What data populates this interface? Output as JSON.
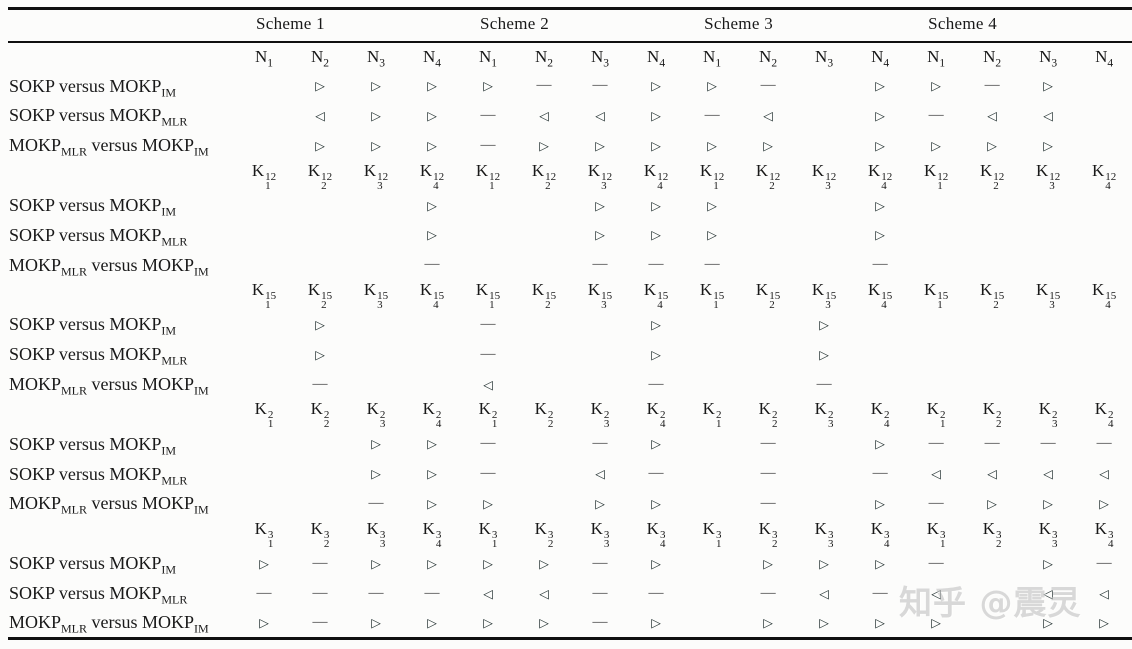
{
  "page": {
    "background": "#fcfcfb"
  },
  "colors": {
    "rule": "#101010",
    "text": "#191919",
    "triangle": "#202e2e",
    "dash": "#3f3f3f",
    "watermark": "#c3c3c3"
  },
  "watermark": {
    "text": "知乎 @震灵"
  },
  "symbols_legend": {
    "better": "▷",
    "worse": "◁",
    "equal": "—"
  },
  "table": {
    "schemes": [
      "Scheme 1",
      "Scheme 2",
      "Scheme 3",
      "Scheme 4"
    ],
    "comparisons": [
      {
        "parts": [
          [
            "t",
            "SOKP versus MOKP"
          ],
          [
            "s",
            "IM"
          ]
        ]
      },
      {
        "parts": [
          [
            "t",
            "SOKP versus MOKP"
          ],
          [
            "s",
            "MLR"
          ]
        ]
      },
      {
        "parts": [
          [
            "t",
            "MOKP"
          ],
          [
            "s",
            "MLR"
          ],
          [
            "t",
            " versus MOKP"
          ],
          [
            "s",
            "IM"
          ]
        ]
      }
    ],
    "blocks": [
      {
        "col_base": "N",
        "col_sup": "",
        "col_subs": [
          "1",
          "2",
          "3",
          "4"
        ],
        "rows": [
          [
            "",
            "▷",
            "▷",
            "▷",
            "▷",
            "—",
            "—",
            "▷",
            "▷",
            "—",
            "",
            "▷",
            "▷",
            "—",
            "▷",
            ""
          ],
          [
            "",
            "◁",
            "▷",
            "▷",
            "—",
            "◁",
            "◁",
            "▷",
            "—",
            "◁",
            "",
            "▷",
            "—",
            "◁",
            "◁",
            ""
          ],
          [
            "",
            "▷",
            "▷",
            "▷",
            "—",
            "▷",
            "▷",
            "▷",
            "▷",
            "▷",
            "",
            "▷",
            "▷",
            "▷",
            "▷",
            ""
          ]
        ]
      },
      {
        "col_base": "K",
        "col_sup": "12",
        "col_subs": [
          "1",
          "2",
          "3",
          "4"
        ],
        "rows": [
          [
            "",
            "",
            "",
            "▷",
            "",
            "",
            "▷",
            "▷",
            "▷",
            "",
            "",
            "▷",
            "",
            "",
            "",
            ""
          ],
          [
            "",
            "",
            "",
            "▷",
            "",
            "",
            "▷",
            "▷",
            "▷",
            "",
            "",
            "▷",
            "",
            "",
            "",
            ""
          ],
          [
            "",
            "",
            "",
            "—",
            "",
            "",
            "—",
            "—",
            "—",
            "",
            "",
            "—",
            "",
            "",
            "",
            ""
          ]
        ]
      },
      {
        "col_base": "K",
        "col_sup": "15",
        "col_subs": [
          "1",
          "2",
          "3",
          "4"
        ],
        "rows": [
          [
            "",
            "▷",
            "",
            "",
            "—",
            "",
            "",
            "▷",
            "",
            "",
            "▷",
            "",
            "",
            "",
            "",
            ""
          ],
          [
            "",
            "▷",
            "",
            "",
            "—",
            "",
            "",
            "▷",
            "",
            "",
            "▷",
            "",
            "",
            "",
            "",
            ""
          ],
          [
            "",
            "—",
            "",
            "",
            "◁",
            "",
            "",
            "—",
            "",
            "",
            "—",
            "",
            "",
            "",
            "",
            ""
          ]
        ]
      },
      {
        "col_base": "K",
        "col_sup": "2",
        "col_subs": [
          "1",
          "2",
          "3",
          "4"
        ],
        "rows": [
          [
            "",
            "",
            "▷",
            "▷",
            "—",
            "",
            "—",
            "▷",
            "",
            "—",
            "",
            "▷",
            "—",
            "—",
            "—",
            "—"
          ],
          [
            "",
            "",
            "▷",
            "▷",
            "—",
            "",
            "◁",
            "—",
            "",
            "—",
            "",
            "—",
            "◁",
            "◁",
            "◁",
            "◁"
          ],
          [
            "",
            "",
            "—",
            "▷",
            "▷",
            "",
            "▷",
            "▷",
            "",
            "—",
            "",
            "▷",
            "—",
            "▷",
            "▷",
            "▷"
          ]
        ]
      },
      {
        "col_base": "K",
        "col_sup": "3",
        "col_subs": [
          "1",
          "2",
          "3",
          "4"
        ],
        "rows": [
          [
            "▷",
            "—",
            "▷",
            "▷",
            "▷",
            "▷",
            "—",
            "▷",
            "",
            "▷",
            "▷",
            "▷",
            "—",
            "",
            "▷",
            "—"
          ],
          [
            "—",
            "—",
            "—",
            "—",
            "◁",
            "◁",
            "—",
            "—",
            "",
            "—",
            "◁",
            "—",
            "◁",
            "",
            "◁",
            "◁"
          ],
          [
            "▷",
            "—",
            "▷",
            "▷",
            "▷",
            "▷",
            "—",
            "▷",
            "",
            "▷",
            "▷",
            "▷",
            "▷",
            "",
            "▷",
            "▷"
          ]
        ]
      }
    ]
  }
}
